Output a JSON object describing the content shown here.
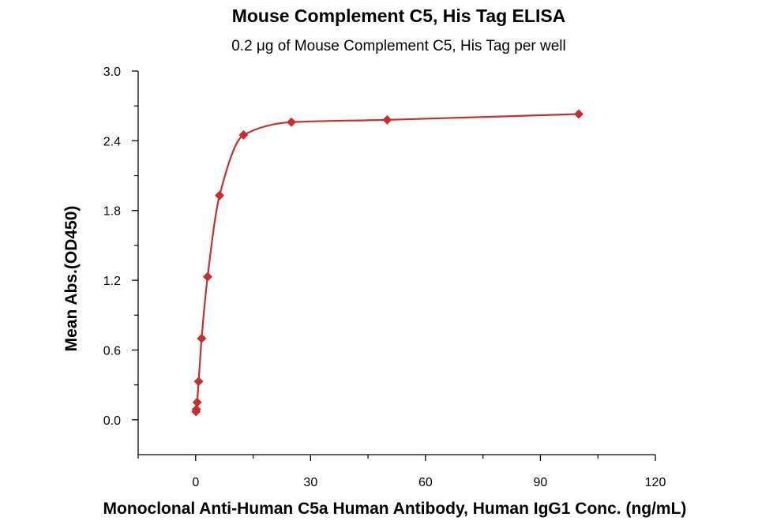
{
  "chart_data": {
    "type": "scatter",
    "title": "Mouse Complement C5, His Tag ELISA",
    "subtitle": "0.2 μg of Mouse Complement C5, His Tag per well",
    "xlabel": "Monoclonal Anti-Human C5a Human Antibody, Human IgG1 Conc. (ng/mL)",
    "ylabel": "Mean Abs.(OD450)",
    "xlim": [
      -15,
      120
    ],
    "ylim": [
      -0.3,
      3.0
    ],
    "x_ticks": [
      0,
      30,
      60,
      90,
      120
    ],
    "x_tick_labels": [
      "0",
      "30",
      "60",
      "90",
      "120"
    ],
    "y_ticks": [
      0.0,
      0.6,
      1.2,
      1.8,
      2.4,
      3.0
    ],
    "y_tick_labels": [
      "0.0",
      "0.6",
      "1.2",
      "1.8",
      "2.4",
      "3.0"
    ],
    "grid": false,
    "legend": "none",
    "series": [
      {
        "color": "#c62f30",
        "marker": "diamond",
        "fit_curve": true,
        "points": [
          {
            "x": 0.0977,
            "y": 0.07
          },
          {
            "x": 0.195,
            "y": 0.09
          },
          {
            "x": 0.39,
            "y": 0.15
          },
          {
            "x": 0.781,
            "y": 0.33
          },
          {
            "x": 1.5625,
            "y": 0.7
          },
          {
            "x": 3.125,
            "y": 1.23
          },
          {
            "x": 6.25,
            "y": 1.93
          },
          {
            "x": 12.5,
            "y": 2.45
          },
          {
            "x": 25,
            "y": 2.56
          },
          {
            "x": 50,
            "y": 2.58
          },
          {
            "x": 100,
            "y": 2.63
          }
        ]
      }
    ]
  }
}
